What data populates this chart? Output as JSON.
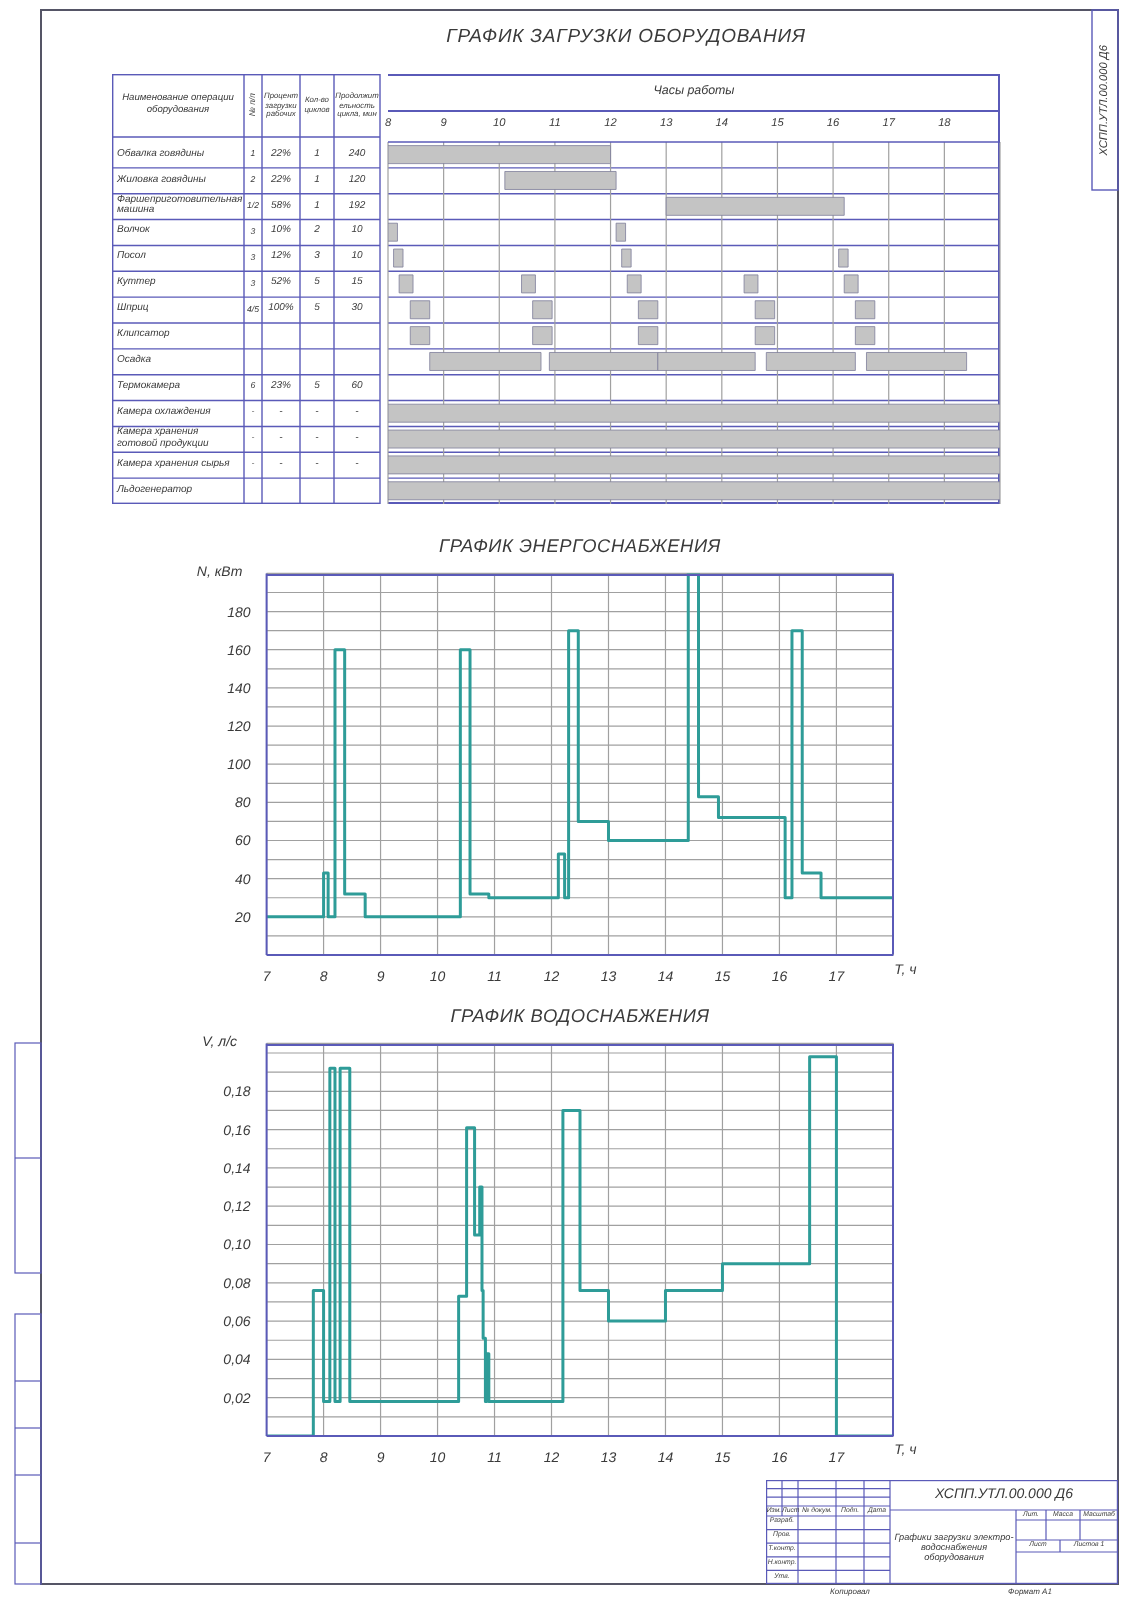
{
  "chart_data": [
    {
      "type": "other",
      "title": "ГРАФИК ЗАГРУЗКИ ОБОРУДОВАНИЯ",
      "ylabel": "Наименование операции оборудования",
      "categories": [
        "№ п/п",
        "Процент загрузки рабочих",
        "Кол-во циклов",
        "Продолжительность цикла, мин"
      ],
      "y_categories": [
        "Обвалка говядины",
        "Жиловка говядины",
        "Фаршеприготовительная машина",
        "Волчок",
        "Посол",
        "Куттер",
        "Шприц",
        "Клипсатор",
        "Осадка",
        "Термокамера",
        "Камера охлаждения",
        "Камера хранения готовой продукции",
        "Камера хранения сырья",
        "Льдогенератор"
      ],
      "cell_labels": [
        [
          "1",
          "22%",
          "1",
          "240"
        ],
        [
          "2",
          "22%",
          "1",
          "120"
        ],
        [
          "1/2",
          "58%",
          "1",
          "192"
        ],
        [
          "3",
          "10%",
          "2",
          "10"
        ],
        [
          "3",
          "12%",
          "3",
          "10"
        ],
        [
          "3",
          "52%",
          "5",
          "15"
        ],
        [
          "4/5",
          "100%",
          "5",
          "30"
        ],
        [
          null,
          null,
          null,
          null
        ],
        [
          null,
          null,
          null,
          null
        ],
        [
          "6",
          "23%",
          "5",
          "60"
        ],
        [
          "-",
          "-",
          "-",
          "-"
        ],
        [
          "-",
          "-",
          "-",
          "-"
        ],
        [
          "-",
          "-",
          "-",
          "-"
        ],
        [
          null,
          null,
          null,
          null
        ]
      ]
    },
    {
      "type": "bar",
      "orientation": "horizontal",
      "xlabel": "Часы работы",
      "categories": [
        null,
        null,
        null,
        null,
        null,
        null,
        null,
        null,
        null,
        null,
        null,
        null,
        null,
        null
      ],
      "series": [
        {
          "color": "#c4c4c4",
          "base": [
            8,
            10.1,
            13,
            8,
            8.1,
            8.2,
            8.4,
            8.4,
            8.75,
            null,
            8,
            8,
            8,
            8
          ],
          "values": [
            4,
            2,
            3.2,
            0.17,
            0.17,
            0.25,
            0.35,
            0.35,
            2,
            null,
            11,
            11,
            11,
            11
          ]
        },
        {
          "color": "#c4c4c4",
          "base": [
            null,
            null,
            null,
            12.1,
            12.2,
            10.4,
            10.6,
            10.6,
            10.9,
            null,
            null,
            null,
            null,
            null
          ],
          "values": [
            null,
            null,
            null,
            0.17,
            0.17,
            0.25,
            0.35,
            0.35,
            1.95,
            null,
            null,
            null,
            null,
            null
          ]
        },
        {
          "color": "#c4c4c4",
          "base": [
            null,
            null,
            null,
            null,
            16.1,
            12.3,
            12.5,
            12.5,
            12.85,
            null,
            null,
            null,
            null,
            null
          ],
          "values": [
            null,
            null,
            null,
            null,
            0.17,
            0.25,
            0.35,
            0.35,
            1.75,
            null,
            null,
            null,
            null,
            null
          ]
        },
        {
          "color": "#c4c4c4",
          "base": [
            null,
            null,
            null,
            null,
            null,
            14.4,
            14.6,
            14.6,
            14.8,
            null,
            null,
            null,
            null,
            null
          ],
          "values": [
            null,
            null,
            null,
            null,
            null,
            0.25,
            0.35,
            0.35,
            1.6,
            null,
            null,
            null,
            null,
            null
          ]
        },
        {
          "color": "#c4c4c4",
          "base": [
            null,
            null,
            null,
            null,
            null,
            16.2,
            16.4,
            16.4,
            16.6,
            null,
            null,
            null,
            null,
            null
          ],
          "values": [
            null,
            null,
            null,
            null,
            null,
            0.25,
            0.35,
            0.35,
            1.8,
            null,
            null,
            null,
            null,
            null
          ]
        }
      ],
      "xlim": [
        8,
        19
      ],
      "xticks": [
        8,
        9,
        10,
        11,
        12,
        13,
        14,
        15,
        16,
        17,
        18
      ],
      "grid": true
    },
    {
      "type": "step",
      "title": "ГРАФИК ЭНЕРГОСНАБЖЕНИЯ",
      "xlabel": "T, ч",
      "ylabel": "N, кВт",
      "x": [
        7,
        8,
        8.08,
        8.2,
        8.37,
        8.73,
        10.4,
        10.57,
        10.9,
        12.12,
        12.23,
        12.3,
        12.47,
        13,
        14.4,
        14.58,
        14.93,
        16.1,
        16.22,
        16.4,
        16.73,
        18
      ],
      "values": [
        20,
        43,
        20,
        160,
        32,
        20,
        160,
        32,
        30,
        53,
        30,
        170,
        70,
        60,
        200,
        83,
        72,
        30,
        170,
        43,
        30,
        30
      ],
      "color": "#2e9c98",
      "xlim": [
        7,
        18
      ],
      "xticks": [
        7,
        8,
        9,
        10,
        11,
        12,
        13,
        14,
        15,
        16,
        17
      ],
      "ylim": [
        0,
        200
      ],
      "yticks": [
        {
          "value": 10,
          "label": null
        },
        20,
        {
          "value": 30,
          "label": null
        },
        40,
        {
          "value": 50,
          "label": null
        },
        60,
        {
          "value": 70,
          "label": null
        },
        80,
        {
          "value": 90,
          "label": null
        },
        100,
        {
          "value": 110,
          "label": null
        },
        120,
        {
          "value": 130,
          "label": null
        },
        140,
        {
          "value": 150,
          "label": null
        },
        160,
        {
          "value": 170,
          "label": null
        },
        180,
        {
          "value": 190,
          "label": null
        }
      ],
      "grid": true
    },
    {
      "type": "step",
      "title": "ГРАФИК ВОДОСНАБЖЕНИЯ",
      "xlabel": "T, ч",
      "ylabel": "V, л/с",
      "x": [
        7,
        7.82,
        8,
        8.11,
        8.2,
        8.29,
        8.46,
        10.37,
        10.51,
        10.65,
        10.74,
        10.78,
        10.8,
        10.84,
        10.86,
        10.9,
        12.2,
        12.5,
        13,
        14,
        15,
        16.53,
        17,
        18
      ],
      "values": [
        0,
        0.076,
        0.018,
        0.192,
        0.018,
        0.192,
        0.018,
        0.073,
        0.161,
        0.105,
        0.13,
        0.076,
        0.051,
        0.018,
        0.043,
        0.018,
        0.17,
        0.076,
        0.06,
        0.076,
        0.09,
        0.198,
        0,
        0
      ],
      "color": "#2e9c98",
      "xlim": [
        7,
        18
      ],
      "xticks": [
        7,
        8,
        9,
        10,
        11,
        12,
        13,
        14,
        15,
        16,
        17
      ],
      "ylim": [
        0,
        0.205
      ],
      "yticks": [
        {
          "value": 0.01,
          "label": null
        },
        {
          "value": 0.02,
          "label": "0,02"
        },
        {
          "value": 0.03,
          "label": null
        },
        {
          "value": 0.04,
          "label": "0,04"
        },
        {
          "value": 0.05,
          "label": null
        },
        {
          "value": 0.06,
          "label": "0,06"
        },
        {
          "value": 0.07,
          "label": null
        },
        {
          "value": 0.08,
          "label": "0,08"
        },
        {
          "value": 0.09,
          "label": null
        },
        {
          "value": 0.1,
          "label": "0,10"
        },
        {
          "value": 0.11,
          "label": null
        },
        {
          "value": 0.12,
          "label": "0,12"
        },
        {
          "value": 0.13,
          "label": null
        },
        {
          "value": 0.14,
          "label": "0,14"
        },
        {
          "value": 0.15,
          "label": null
        },
        {
          "value": 0.16,
          "label": "0,16"
        },
        {
          "value": 0.17,
          "label": null
        },
        {
          "value": 0.18,
          "label": "0,18"
        },
        {
          "value": 0.19,
          "label": null
        },
        {
          "value": 0.2,
          "label": null
        }
      ],
      "grid": true
    },
    {
      "type": "other",
      "title": "ХСПП.УТЛ.00.000 Д6",
      "subtitle": "Графики загрузки электро- водоснабжения оборудования",
      "annotations": [
        "Изм.",
        "Лист",
        "№ докум.",
        "Подп.",
        "Дата",
        "Разраб.",
        "Пров.",
        "Т.контр.",
        "Н.контр.",
        "Утв.",
        "Лит.",
        "Масса",
        "Масштаб",
        "Лист",
        "Листов 1",
        "Копировал",
        "Формат А1"
      ]
    }
  ]
}
